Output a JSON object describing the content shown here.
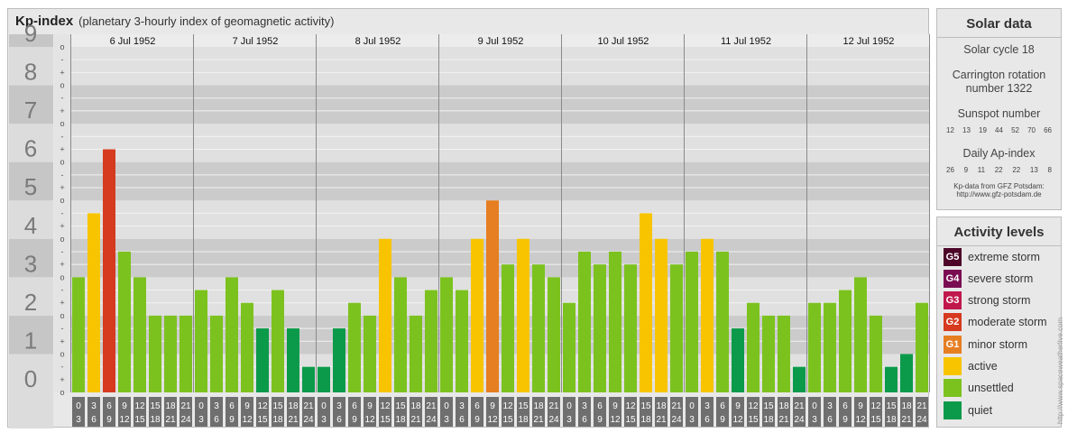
{
  "header": {
    "title": "Kp-index",
    "subtitle": "(planetary 3-hourly index of geomagnetic activity)"
  },
  "chart_data": {
    "type": "bar",
    "ylim": [
      0,
      9
    ],
    "y_tick_labels": [
      "0",
      "1",
      "2",
      "3",
      "4",
      "5",
      "6",
      "7",
      "8",
      "9"
    ],
    "minor_tick_labels": [
      "o",
      "+",
      "-"
    ],
    "day_labels": [
      "6 Jul 1952",
      "7 Jul 1952",
      "8 Jul 1952",
      "9 Jul 1952",
      "10 Jul 1952",
      "11 Jul 1952",
      "12 Jul 1952"
    ],
    "hour_labels": [
      [
        "0",
        "3"
      ],
      [
        "3",
        "6"
      ],
      [
        "6",
        "9"
      ],
      [
        "9",
        "12"
      ],
      [
        "12",
        "15"
      ],
      [
        "15",
        "18"
      ],
      [
        "18",
        "21"
      ],
      [
        "21",
        "24"
      ]
    ],
    "values": [
      3.0,
      4.667,
      6.333,
      3.667,
      3.0,
      2.0,
      2.0,
      2.0,
      2.667,
      2.0,
      3.0,
      2.333,
      1.667,
      2.667,
      1.667,
      0.667,
      0.667,
      1.667,
      2.333,
      2.0,
      4.0,
      3.0,
      2.0,
      2.667,
      3.0,
      2.667,
      4.0,
      5.0,
      3.333,
      4.0,
      3.333,
      3.0,
      2.333,
      3.667,
      3.333,
      3.667,
      3.333,
      4.667,
      4.0,
      3.333,
      3.667,
      4.0,
      3.667,
      1.667,
      2.333,
      2.0,
      2.0,
      0.667,
      2.333,
      2.333,
      2.667,
      3.0,
      2.0,
      0.667,
      1.0,
      2.333
    ],
    "level_colors": {
      "quiet": "#0b9a4a",
      "unsettled": "#7cc21f",
      "active": "#f8c400",
      "G1": "#e67e22",
      "G2": "#d63a1f",
      "G3": "#c0174d",
      "G4": "#7a0d52",
      "G5": "#4d0428"
    }
  },
  "solar_data": {
    "title": "Solar data",
    "solar_cycle": "Solar cycle 18",
    "carrington_line1": "Carrington rotation",
    "carrington_line2": "number 1322",
    "sunspot_title": "Sunspot number",
    "sunspot_values": [
      "12",
      "13",
      "19",
      "44",
      "52",
      "70",
      "66"
    ],
    "ap_title": "Daily Ap-index",
    "ap_values": [
      "26",
      "9",
      "11",
      "22",
      "22",
      "13",
      "8"
    ],
    "source_line1": "Kp-data from GFZ Potsdam:",
    "source_line2": "http://www.gfz-potsdam.de"
  },
  "activity_levels": {
    "title": "Activity levels",
    "items": [
      {
        "code": "G5",
        "label": "extreme storm",
        "color": "#4d0428"
      },
      {
        "code": "G4",
        "label": "severe storm",
        "color": "#7a0d52"
      },
      {
        "code": "G3",
        "label": "strong storm",
        "color": "#c0174d"
      },
      {
        "code": "G2",
        "label": "moderate storm",
        "color": "#d63a1f"
      },
      {
        "code": "G1",
        "label": "minor storm",
        "color": "#e67e22"
      },
      {
        "code": "",
        "label": "active",
        "color": "#f8c400"
      },
      {
        "code": "",
        "label": "unsettled",
        "color": "#7cc21f"
      },
      {
        "code": "",
        "label": "quiet",
        "color": "#0b9a4a"
      }
    ]
  },
  "watermark": "http://www.spaceweatherlive.com"
}
